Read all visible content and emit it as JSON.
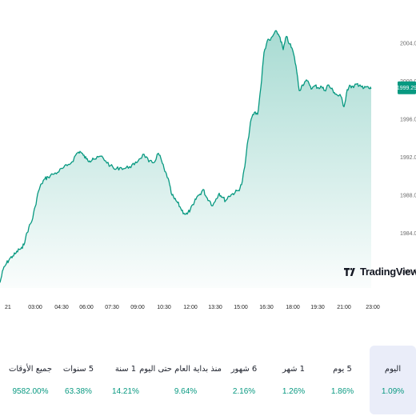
{
  "chart_data": {
    "type": "area",
    "x_ticks": [
      "21",
      "03:00",
      "04:30",
      "06:00",
      "07:30",
      "09:00",
      "10:30",
      "12:00",
      "13:30",
      "15:00",
      "16:30",
      "18:00",
      "19:30",
      "21:00",
      "23:00"
    ],
    "y_ticks": [
      "1980.00",
      "1984.00",
      "1988.00",
      "1992.00",
      "1996.00",
      "2000.00",
      "2004.00"
    ],
    "ylim": [
      1978.4,
      2006.0
    ],
    "last_value_label": "1999.29",
    "series": [
      {
        "x": [
          0,
          4,
          8,
          12,
          16,
          20,
          24,
          28,
          32,
          36,
          40,
          44,
          48,
          52,
          56,
          60,
          66,
          72,
          78,
          84,
          90,
          96,
          100,
          104,
          108,
          112,
          116,
          120,
          126,
          132,
          138,
          144,
          150,
          156,
          162,
          168,
          174,
          180,
          186,
          192,
          198,
          202,
          206,
          210,
          214,
          218,
          222,
          226,
          230,
          234,
          238,
          242,
          246,
          250,
          254,
          258,
          262,
          266,
          270,
          274,
          278,
          282,
          286,
          290,
          294,
          298,
          302,
          306,
          310,
          314,
          318,
          322,
          326,
          330,
          334,
          338,
          342,
          346,
          350,
          354,
          358,
          362,
          366,
          370,
          374,
          378,
          382,
          386,
          390,
          394,
          398,
          402,
          406,
          410,
          414,
          418,
          422,
          426,
          430,
          434,
          438,
          442,
          446,
          450,
          454,
          458,
          462,
          464
        ],
        "values": [
          1978.8,
          1980.2,
          1980.8,
          1981.3,
          1981.6,
          1981.9,
          1982.3,
          1982.4,
          1983.5,
          1984.6,
          1985.3,
          1986.8,
          1988.4,
          1989.2,
          1989.7,
          1989.9,
          1990.2,
          1990.4,
          1990.8,
          1991.1,
          1991.5,
          1992.4,
          1992.6,
          1992.2,
          1991.8,
          1991.6,
          1991.9,
          1991.8,
          1992.1,
          1991.6,
          1991.1,
          1990.7,
          1990.9,
          1990.8,
          1991.0,
          1991.2,
          1991.8,
          1992.3,
          1991.5,
          1991.4,
          1992.4,
          1991.6,
          1990.5,
          1989.8,
          1988.2,
          1987.6,
          1987.2,
          1986.6,
          1986.1,
          1986.0,
          1986.5,
          1987.0,
          1987.8,
          1988.1,
          1988.6,
          1987.8,
          1987.4,
          1986.9,
          1987.6,
          1988.2,
          1987.8,
          1987.4,
          1987.9,
          1988.1,
          1988.3,
          1988.5,
          1989.1,
          1991.0,
          1993.8,
          1996.0,
          1996.7,
          1996.5,
          1999.3,
          2003.0,
          2004.2,
          2004.3,
          2004.9,
          2005.2,
          2004.6,
          2003.3,
          2004.7,
          2003.9,
          2003.2,
          2001.6,
          1999.0,
          1999.6,
          2000.0,
          1999.8,
          1999.2,
          1999.5,
          1999.3,
          1999.4,
          1999.0,
          1999.6,
          1999.2,
          1998.8,
          1998.5,
          1998.4,
          1997.3,
          1999.1,
          1999.5,
          1999.3,
          1999.7,
          1999.6,
          1999.2,
          1999.4,
          1999.2,
          1999.29
        ]
      }
    ],
    "line_color": "#089981",
    "fill_color": "#089981",
    "grid": false
  },
  "brand": {
    "name": "TradingView"
  },
  "performance": [
    {
      "label": "جميع الأوقات",
      "value": "9582.00%"
    },
    {
      "label": "5 سنوات",
      "value": "63.38%"
    },
    {
      "label": "1 سنة",
      "value": "14.21%"
    },
    {
      "label": "منذ بداية العام حتى اليوم",
      "value": "9.64%"
    },
    {
      "label": "6 شهور",
      "value": "2.16%"
    },
    {
      "label": "1 شهر",
      "value": "1.26%"
    },
    {
      "label": "5 يوم",
      "value": "1.86%"
    },
    {
      "label": "اليوم",
      "value": "1.09%",
      "active": true
    }
  ]
}
